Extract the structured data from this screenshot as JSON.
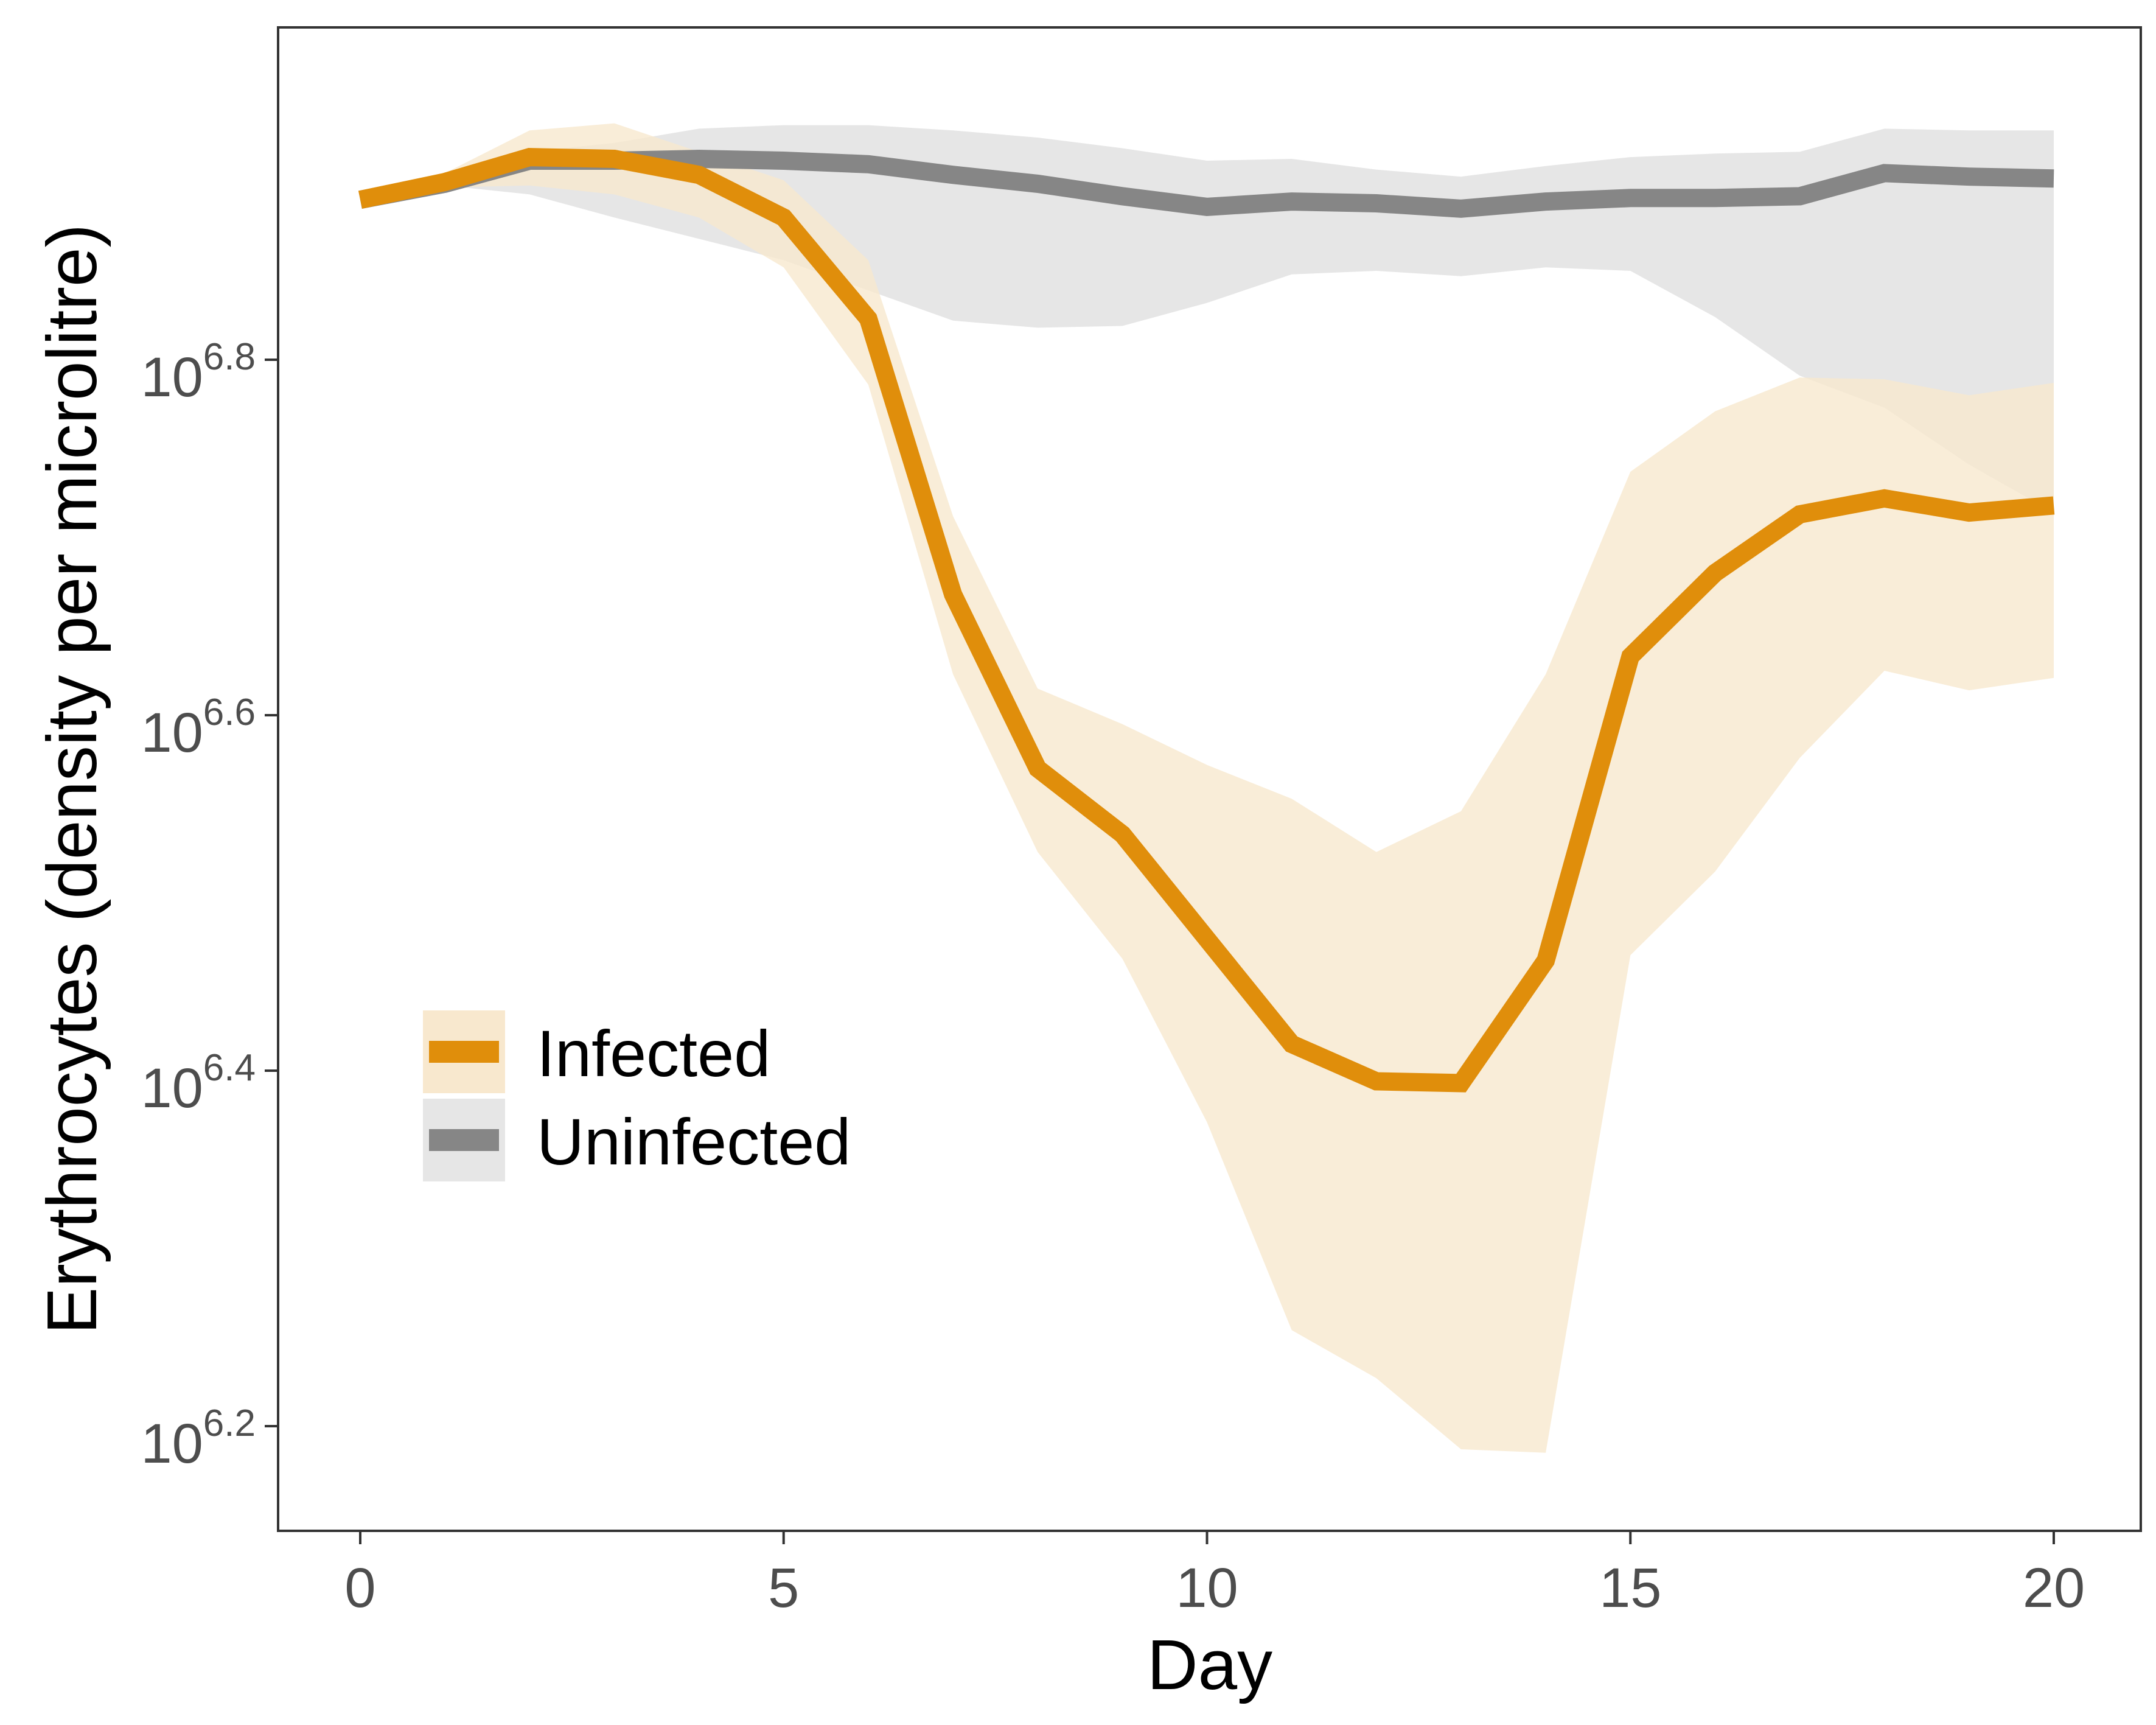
{
  "chart_data": {
    "type": "line",
    "xlabel": "Day",
    "ylabel": "Erythrocytes (density per microlitre)",
    "y_scale": "log10",
    "xlim": [
      -1,
      21
    ],
    "xticks": [
      0,
      5,
      10,
      15,
      20
    ],
    "yticks": [
      {
        "base": "10",
        "exp": "6.2",
        "value": 6.2
      },
      {
        "base": "10",
        "exp": "6.4",
        "value": 6.4
      },
      {
        "base": "10",
        "exp": "6.6",
        "value": 6.6
      },
      {
        "base": "10",
        "exp": "6.8",
        "value": 6.8
      }
    ],
    "grid": false,
    "legend_position": "inside-bottom-left",
    "x": [
      0,
      1,
      2,
      3,
      4,
      5,
      6,
      7,
      8,
      9,
      10,
      11,
      12,
      13,
      14,
      15,
      16,
      17,
      18,
      19,
      20
    ],
    "series": [
      {
        "name": "Infected",
        "color": "#E08E0B",
        "fill_color": "#F8E8CE",
        "values": [
          6.89,
          6.9,
          6.914,
          6.913,
          6.904,
          6.88,
          6.823,
          6.668,
          6.57,
          6.533,
          6.474,
          6.415,
          6.394,
          6.393,
          6.462,
          6.633,
          6.68,
          6.713,
          6.722,
          6.714,
          6.718
        ],
        "lower": [
          6.89,
          6.897,
          6.898,
          6.893,
          6.88,
          6.852,
          6.786,
          6.623,
          6.523,
          6.463,
          6.371,
          6.254,
          6.227,
          6.187,
          6.185,
          6.465,
          6.512,
          6.576,
          6.625,
          6.614,
          6.621
        ],
        "upper": [
          6.89,
          6.905,
          6.929,
          6.933,
          6.917,
          6.901,
          6.856,
          6.712,
          6.615,
          6.595,
          6.572,
          6.553,
          6.523,
          6.546,
          6.623,
          6.737,
          6.771,
          6.79,
          6.789,
          6.78,
          6.787
        ]
      },
      {
        "name": "Uninfected",
        "color": "#868686",
        "fill_color": "#E6E6E6",
        "values": [
          6.89,
          6.899,
          6.912,
          6.912,
          6.913,
          6.912,
          6.91,
          6.904,
          6.899,
          6.892,
          6.886,
          6.889,
          6.888,
          6.885,
          6.889,
          6.891,
          6.891,
          6.892,
          6.905,
          6.903,
          6.902
        ],
        "lower": [
          6.89,
          6.898,
          6.893,
          6.88,
          6.868,
          6.856,
          6.839,
          6.822,
          6.818,
          6.819,
          6.832,
          6.848,
          6.85,
          6.847,
          6.852,
          6.85,
          6.824,
          6.791,
          6.773,
          6.741,
          6.714
        ],
        "upper": [
          6.89,
          6.902,
          6.917,
          6.922,
          6.93,
          6.932,
          6.932,
          6.929,
          6.925,
          6.919,
          6.912,
          6.913,
          6.907,
          6.903,
          6.909,
          6.914,
          6.916,
          6.917,
          6.93,
          6.929,
          6.929
        ]
      }
    ]
  }
}
